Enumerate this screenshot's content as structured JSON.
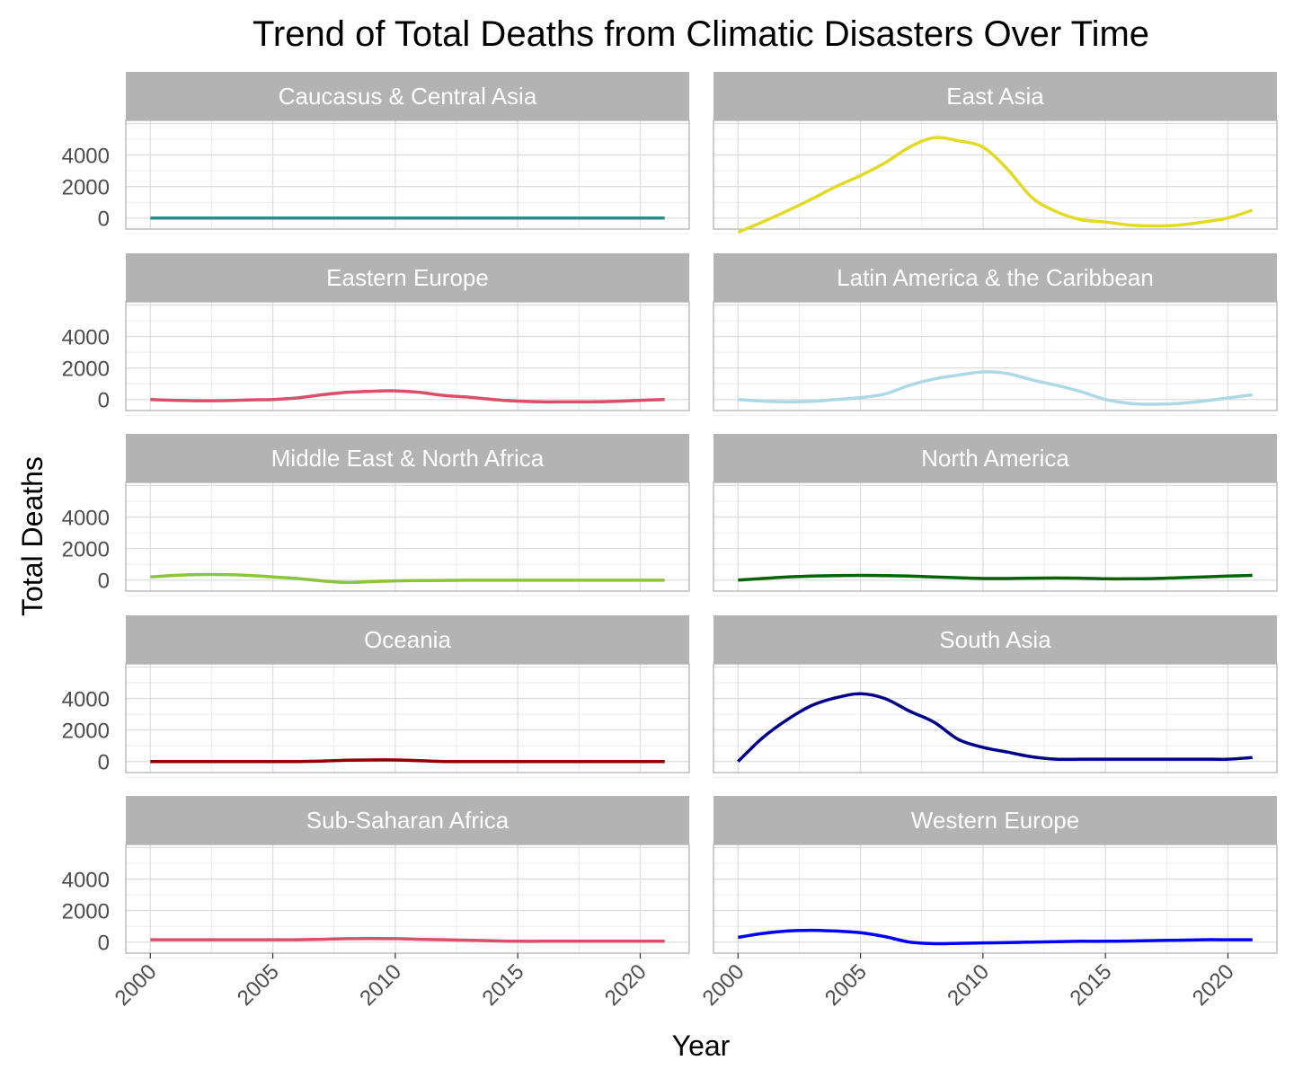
{
  "chart_data": {
    "type": "line",
    "title": "Trend of Total Deaths from Climatic Disasters Over Time",
    "xlabel": "Year",
    "ylabel": "Total Deaths",
    "xlim": [
      1999,
      2022
    ],
    "ylim": [
      -700,
      6200
    ],
    "x_ticks": [
      2000,
      2005,
      2010,
      2015,
      2020
    ],
    "y_ticks": [
      0,
      2000,
      4000
    ],
    "grid": true,
    "facets": "5 rows x 2 columns, strip labels on top",
    "x": [
      2000,
      2001,
      2002,
      2003,
      2004,
      2005,
      2006,
      2007,
      2008,
      2009,
      2010,
      2011,
      2012,
      2013,
      2014,
      2015,
      2016,
      2017,
      2018,
      2019,
      2020,
      2021
    ],
    "series": [
      {
        "name": "Caucasus & Central Asia",
        "color": "#21908C",
        "values": [
          0,
          0,
          0,
          0,
          0,
          0,
          0,
          0,
          0,
          0,
          0,
          0,
          0,
          0,
          0,
          0,
          0,
          0,
          0,
          0,
          0,
          0
        ]
      },
      {
        "name": "East Asia",
        "color": "#E3DA25",
        "values": [
          -900,
          -250,
          450,
          1200,
          2000,
          2700,
          3500,
          4500,
          5100,
          4900,
          4500,
          3100,
          1300,
          400,
          -100,
          -250,
          -450,
          -500,
          -450,
          -250,
          0,
          500
        ]
      },
      {
        "name": "Eastern Europe",
        "color": "#D94F6C",
        "values": [
          0,
          -50,
          -80,
          -70,
          -30,
          0,
          100,
          300,
          450,
          520,
          550,
          450,
          250,
          150,
          0,
          -100,
          -150,
          -150,
          -150,
          -120,
          -50,
          0
        ]
      },
      {
        "name": "Latin America & the Caribbean",
        "color": "#ADD8E6",
        "values": [
          0,
          -100,
          -150,
          -120,
          0,
          120,
          350,
          900,
          1300,
          1550,
          1750,
          1650,
          1250,
          900,
          500,
          0,
          -250,
          -300,
          -250,
          -100,
          100,
          300
        ]
      },
      {
        "name": "Middle East & North Africa",
        "color": "#8BC53F",
        "values": [
          200,
          300,
          350,
          350,
          300,
          200,
          100,
          -50,
          -150,
          -100,
          -50,
          -30,
          -20,
          -10,
          -10,
          -10,
          -10,
          -10,
          -10,
          -10,
          -10,
          -10
        ]
      },
      {
        "name": "North America",
        "color": "#006400",
        "values": [
          0,
          100,
          200,
          250,
          280,
          300,
          280,
          250,
          200,
          150,
          100,
          100,
          120,
          130,
          120,
          80,
          80,
          100,
          150,
          200,
          250,
          300
        ]
      },
      {
        "name": "Oceania",
        "color": "#8B0000",
        "values": [
          0,
          0,
          0,
          0,
          0,
          0,
          0,
          30,
          80,
          100,
          100,
          50,
          0,
          0,
          0,
          0,
          0,
          0,
          0,
          0,
          0,
          0
        ]
      },
      {
        "name": "South Asia",
        "color": "#00008B",
        "values": [
          0,
          1500,
          2650,
          3550,
          4050,
          4300,
          4000,
          3200,
          2500,
          1400,
          900,
          600,
          300,
          150,
          150,
          150,
          150,
          150,
          150,
          150,
          150,
          250
        ]
      },
      {
        "name": "Sub-Saharan Africa",
        "color": "#D94F6C",
        "values": [
          150,
          150,
          150,
          150,
          150,
          150,
          150,
          180,
          220,
          230,
          220,
          180,
          150,
          120,
          80,
          50,
          50,
          50,
          50,
          50,
          50,
          50
        ]
      },
      {
        "name": "Western Europe",
        "color": "#0000FF",
        "values": [
          300,
          550,
          700,
          750,
          700,
          600,
          350,
          0,
          -100,
          -80,
          -50,
          -30,
          0,
          30,
          50,
          50,
          70,
          100,
          120,
          150,
          150,
          150
        ]
      }
    ]
  }
}
